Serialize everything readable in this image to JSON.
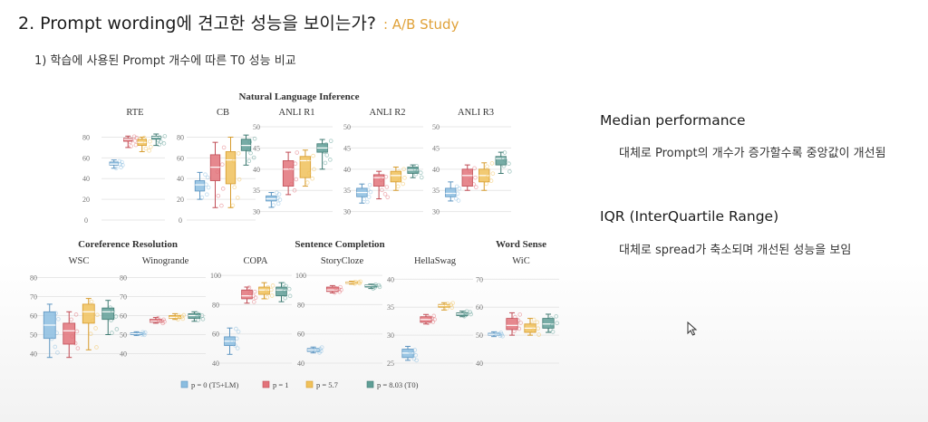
{
  "slide": {
    "title": "2. Prompt wording에 견고한 성능을 보이는가?",
    "title_tag": ": A/B Study",
    "subtitle": "1) 학습에 사용된 Prompt 개수에 따른 T0 성능 비교"
  },
  "notes": [
    {
      "heading": "Median performance",
      "text": "대체로 Prompt의 개수가 증가할수록 중앙값이 개선됨"
    },
    {
      "heading": "IQR (InterQuartile Range)",
      "text": "대체로 spread가 축소되며 개선된 성능을 보임"
    }
  ],
  "figure": {
    "group_titles": [
      "Natural Language Inference",
      "Coreference Resolution",
      "Sentence Completion",
      "Word Sense"
    ],
    "legend": [
      "p = 0 (T5+LM)",
      "p = 1",
      "p = 5.7",
      "p = 8.03 (T0)"
    ],
    "colors": [
      "#8bbde0",
      "#e2737a",
      "#f0c15a",
      "#5f9e96"
    ]
  },
  "chart_data": [
    {
      "type": "box",
      "title": "RTE",
      "group": "Natural Language Inference",
      "ylim": [
        0,
        90
      ],
      "yticks": [
        0,
        20,
        40,
        60,
        80
      ],
      "series": [
        {
          "name": "p = 0 (T5+LM)",
          "box": [
            50,
            53,
            54,
            56,
            58
          ]
        },
        {
          "name": "p = 1",
          "box": [
            70,
            76,
            78,
            79,
            81
          ]
        },
        {
          "name": "p = 5.7",
          "box": [
            66,
            72,
            75,
            78,
            80
          ]
        },
        {
          "name": "p = 8.03 (T0)",
          "box": [
            72,
            78,
            80,
            81,
            83
          ]
        }
      ]
    },
    {
      "type": "box",
      "title": "CB",
      "group": "Natural Language Inference",
      "ylim": [
        0,
        90
      ],
      "yticks": [
        0,
        20,
        40,
        60,
        80
      ],
      "series": [
        {
          "name": "p = 0 (T5+LM)",
          "box": [
            20,
            28,
            34,
            38,
            46
          ]
        },
        {
          "name": "p = 1",
          "box": [
            12,
            38,
            51,
            63,
            75
          ]
        },
        {
          "name": "p = 5.7",
          "box": [
            12,
            35,
            58,
            66,
            80
          ]
        },
        {
          "name": "p = 8.03 (T0)",
          "box": [
            53,
            67,
            72,
            78,
            82
          ]
        }
      ]
    },
    {
      "type": "box",
      "title": "ANLI R1",
      "group": "Natural Language Inference",
      "ylim": [
        28,
        50
      ],
      "yticks": [
        30,
        35,
        40,
        45,
        50
      ],
      "series": [
        {
          "name": "p = 0 (T5+LM)",
          "box": [
            31,
            32.5,
            33,
            33.7,
            34.5
          ]
        },
        {
          "name": "p = 1",
          "box": [
            34,
            36,
            40,
            42,
            44
          ]
        },
        {
          "name": "p = 5.7",
          "box": [
            36,
            38,
            42,
            43,
            44.5
          ]
        },
        {
          "name": "p = 8.03 (T0)",
          "box": [
            40,
            44,
            45,
            46,
            47
          ]
        }
      ]
    },
    {
      "type": "box",
      "title": "ANLI R2",
      "group": "Natural Language Inference",
      "ylim": [
        28,
        50
      ],
      "yticks": [
        30,
        35,
        40,
        45,
        50
      ],
      "series": [
        {
          "name": "p = 0 (T5+LM)",
          "box": [
            32,
            33.5,
            34.5,
            35.5,
            36.5
          ]
        },
        {
          "name": "p = 1",
          "box": [
            33,
            36,
            38,
            38.7,
            39.5
          ]
        },
        {
          "name": "p = 5.7",
          "box": [
            35,
            37,
            38.5,
            39.5,
            40.5
          ]
        },
        {
          "name": "p = 8.03 (T0)",
          "box": [
            38,
            39,
            39.8,
            40.5,
            41
          ]
        }
      ]
    },
    {
      "type": "box",
      "title": "ANLI R3",
      "group": "Natural Language Inference",
      "ylim": [
        28,
        50
      ],
      "yticks": [
        30,
        35,
        40,
        45,
        50
      ],
      "series": [
        {
          "name": "p = 0 (T5+LM)",
          "box": [
            32.5,
            33.5,
            34.3,
            35.5,
            37
          ]
        },
        {
          "name": "p = 1",
          "box": [
            35,
            36,
            38.5,
            40,
            41
          ]
        },
        {
          "name": "p = 5.7",
          "box": [
            35,
            37,
            38.5,
            40,
            41.5
          ]
        },
        {
          "name": "p = 8.03 (T0)",
          "box": [
            39,
            41,
            42.5,
            43,
            44
          ]
        }
      ]
    },
    {
      "type": "box",
      "title": "WSC",
      "group": "Coreference Resolution",
      "ylim": [
        35,
        85
      ],
      "yticks": [
        40,
        50,
        60,
        70,
        80
      ],
      "series": [
        {
          "name": "p = 0 (T5+LM)",
          "box": [
            38,
            48,
            55,
            62,
            66
          ]
        },
        {
          "name": "p = 1",
          "box": [
            38,
            45,
            52,
            56,
            62
          ]
        },
        {
          "name": "p = 5.7",
          "box": [
            42,
            56,
            62,
            66,
            69
          ]
        },
        {
          "name": "p = 8.03 (T0)",
          "box": [
            50,
            58,
            62,
            64,
            68
          ]
        }
      ]
    },
    {
      "type": "box",
      "title": "Winogrande",
      "group": "Coreference Resolution",
      "ylim": [
        35,
        85
      ],
      "yticks": [
        40,
        50,
        60,
        70,
        80
      ],
      "series": [
        {
          "name": "p = 0 (T5+LM)",
          "box": [
            49.5,
            50,
            50.5,
            51,
            51.5
          ]
        },
        {
          "name": "p = 1",
          "box": [
            56,
            56.5,
            57,
            58,
            59
          ]
        },
        {
          "name": "p = 5.7",
          "box": [
            58,
            58.5,
            59,
            60,
            61
          ]
        },
        {
          "name": "p = 8.03 (T0)",
          "box": [
            57,
            58.5,
            60,
            61,
            62
          ]
        }
      ]
    },
    {
      "type": "box",
      "title": "COPA",
      "group": "Sentence Completion",
      "ylim": [
        40,
        105
      ],
      "yticks": [
        40,
        60,
        80,
        100
      ],
      "series": [
        {
          "name": "p = 0 (T5+LM)",
          "box": [
            46,
            52,
            55,
            58,
            64
          ]
        },
        {
          "name": "p = 1",
          "box": [
            81,
            84,
            86,
            90,
            92
          ]
        },
        {
          "name": "p = 5.7",
          "box": [
            84,
            87,
            90,
            92,
            95
          ]
        },
        {
          "name": "p = 8.03 (T0)",
          "box": [
            82,
            86,
            90,
            92,
            95
          ]
        }
      ]
    },
    {
      "type": "box",
      "title": "StoryCloze",
      "group": "Sentence Completion",
      "ylim": [
        40,
        105
      ],
      "yticks": [
        40,
        60,
        80,
        100
      ],
      "series": [
        {
          "name": "p = 0 (T5+LM)",
          "box": [
            47,
            48,
            49,
            50,
            51
          ]
        },
        {
          "name": "p = 1",
          "box": [
            88,
            89,
            90,
            92,
            93
          ]
        },
        {
          "name": "p = 5.7",
          "box": [
            94,
            94.5,
            95,
            95.5,
            96
          ]
        },
        {
          "name": "p = 8.03 (T0)",
          "box": [
            91,
            92,
            93,
            93.5,
            94
          ]
        }
      ]
    },
    {
      "type": "box",
      "title": "HellaSwag",
      "group": "Sentence Completion",
      "ylim": [
        25,
        42
      ],
      "yticks": [
        25,
        30,
        35,
        40
      ],
      "series": [
        {
          "name": "p = 0 (T5+LM)",
          "box": [
            25.5,
            26,
            26.8,
            27.5,
            28
          ]
        },
        {
          "name": "p = 1",
          "box": [
            32,
            32.3,
            32.8,
            33.3,
            33.7
          ]
        },
        {
          "name": "p = 5.7",
          "box": [
            34.5,
            35,
            35.3,
            35.5,
            35.8
          ]
        },
        {
          "name": "p = 8.03 (T0)",
          "box": [
            33.3,
            33.5,
            33.8,
            34,
            34.3
          ]
        }
      ]
    },
    {
      "type": "box",
      "title": "WiC",
      "group": "Word Sense",
      "ylim": [
        40,
        74
      ],
      "yticks": [
        40,
        50,
        60,
        70
      ],
      "series": [
        {
          "name": "p = 0 (T5+LM)",
          "box": [
            49.5,
            50,
            50.3,
            50.7,
            51.2
          ]
        },
        {
          "name": "p = 1",
          "box": [
            50,
            52,
            53.5,
            56,
            58
          ]
        },
        {
          "name": "p = 5.7",
          "box": [
            50,
            51,
            52.5,
            54,
            56
          ]
        },
        {
          "name": "p = 8.03 (T0)",
          "box": [
            51,
            52.5,
            54,
            56,
            57.5
          ]
        }
      ]
    }
  ]
}
